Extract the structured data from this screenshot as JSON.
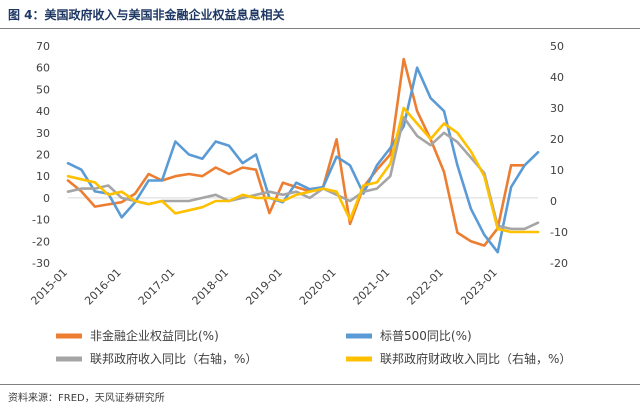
{
  "header": {
    "title": "图 4：美国政府收入与美国非金融企业权益息息相关"
  },
  "footer": {
    "source": "资料来源：FRED，天风证券研究所"
  },
  "chart_data": {
    "type": "line",
    "title": "",
    "x": [
      "2015-01",
      "2015-04",
      "2015-07",
      "2015-10",
      "2016-01",
      "2016-04",
      "2016-07",
      "2016-10",
      "2017-01",
      "2017-04",
      "2017-07",
      "2017-10",
      "2018-01",
      "2018-04",
      "2018-07",
      "2018-10",
      "2019-01",
      "2019-04",
      "2019-07",
      "2019-10",
      "2020-01",
      "2020-04",
      "2020-07",
      "2020-10",
      "2021-01",
      "2021-04",
      "2021-07",
      "2021-10",
      "2022-01",
      "2022-04",
      "2022-07",
      "2022-10",
      "2023-01",
      "2023-04",
      "2023-07",
      "2023-10"
    ],
    "x_tick_labels": [
      "2015-01",
      "2016-01",
      "2017-01",
      "2018-01",
      "2019-01",
      "2020-01",
      "2021-01",
      "2022-01",
      "2023-01"
    ],
    "left_axis": {
      "ylim": [
        -30,
        70
      ],
      "ticks": [
        -30,
        -20,
        -10,
        0,
        10,
        20,
        30,
        40,
        50,
        60,
        70
      ]
    },
    "right_axis": {
      "ylim": [
        -20,
        50
      ],
      "ticks": [
        -20,
        -10,
        0,
        10,
        20,
        30,
        40,
        50
      ]
    },
    "grid": false,
    "legend_placement": "bottom",
    "series": [
      {
        "name": "非金融企业权益同比(%)",
        "axis": "left",
        "color": "#ed7d31",
        "values": [
          8,
          3,
          -4,
          -3,
          -2,
          2,
          11,
          8,
          10,
          11,
          10,
          14,
          11,
          14,
          13,
          -7,
          7,
          5,
          3,
          5,
          27,
          -12,
          5,
          13,
          20,
          64,
          40,
          27,
          12,
          -16,
          -20,
          -22,
          -14,
          15,
          15,
          null
        ]
      },
      {
        "name": "标普500同比(%)",
        "axis": "left",
        "color": "#5b9bd5",
        "values": [
          16,
          13,
          3,
          2,
          -9,
          -2,
          8,
          8,
          26,
          20,
          18,
          26,
          24,
          16,
          20,
          0,
          -2,
          7,
          4,
          5,
          19,
          15,
          2,
          15,
          23,
          33,
          60,
          46,
          40,
          15,
          -5,
          -17,
          -25,
          5,
          15,
          21
        ]
      },
      {
        "name": "联邦政府收入同比（右轴，%）",
        "axis": "right",
        "color": "#a5a5a5",
        "values": [
          3,
          4,
          4,
          5,
          1,
          0,
          -1,
          0,
          0,
          0,
          1,
          2,
          0,
          1,
          2,
          3,
          2,
          3,
          1,
          4,
          2,
          0,
          3,
          4,
          8,
          27,
          21,
          18,
          22,
          19,
          14,
          9,
          -8,
          -9,
          -9,
          -7
        ]
      },
      {
        "name": "联邦政府财政收入同比（右轴，%）",
        "axis": "right",
        "color": "#ffc000",
        "values": [
          8,
          7,
          6,
          2,
          3,
          0,
          -1,
          0,
          -4,
          -3,
          -2,
          0,
          0,
          2,
          1,
          1,
          0,
          2,
          3,
          4,
          3,
          -6,
          5,
          6,
          12,
          30,
          25,
          20,
          25,
          22,
          16,
          8,
          -9,
          -10,
          -10,
          -10
        ]
      }
    ]
  }
}
